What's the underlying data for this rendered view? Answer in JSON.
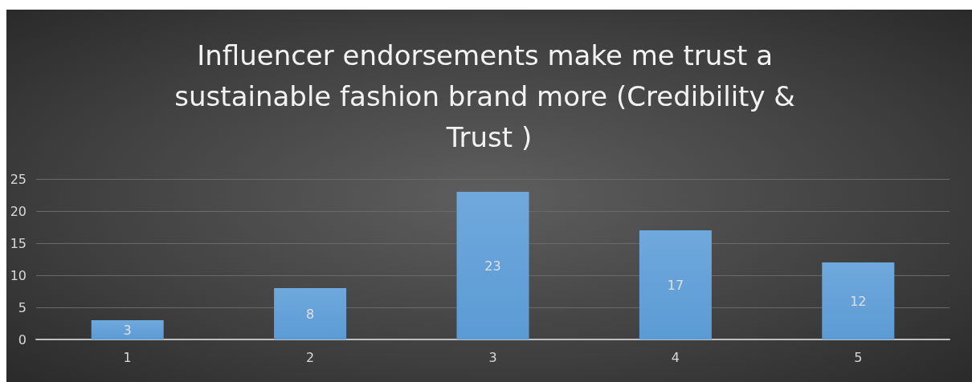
{
  "chart_data": {
    "type": "bar",
    "title": "Influencer endorsements make me trust a sustainable fashion brand more (Credibility & Trust )",
    "categories": [
      "1",
      "2",
      "3",
      "4",
      "5"
    ],
    "values": [
      3,
      8,
      23,
      17,
      12
    ],
    "color": "#5b9bd5",
    "ylim": [
      0,
      25
    ],
    "yticks": [
      0,
      5,
      10,
      15,
      20,
      25
    ],
    "grid": "y",
    "data_labels": true
  }
}
